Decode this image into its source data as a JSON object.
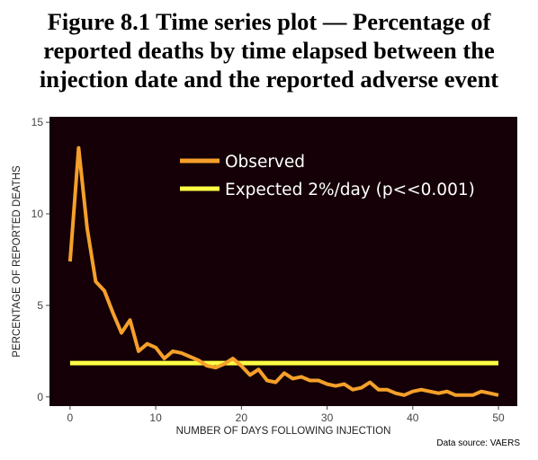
{
  "figure": {
    "title_lines": [
      "Figure 8.1  Time series plot — Percentage of",
      "reported deaths by time elapsed between the",
      "injection date and the reported adverse event"
    ],
    "source": "Data source: VAERS"
  },
  "chart_data": {
    "type": "line",
    "title": "Figure 8.1  Time series plot — Percentage of reported deaths by time elapsed between the injection date and the reported adverse event",
    "xlabel": "NUMBER OF DAYS FOLLOWING INJECTION",
    "ylabel": "PERCENTAGE OF REPORTED DEATHS",
    "xlim": [
      -2.4,
      52.2
    ],
    "ylim": [
      -0.5,
      15.3
    ],
    "xticks": [
      0,
      10,
      20,
      30,
      40,
      50
    ],
    "yticks": [
      0,
      5,
      10,
      15
    ],
    "background": "#140006",
    "grid": false,
    "legend_position": "top-center",
    "x": [
      0,
      1,
      2,
      3,
      4,
      5,
      6,
      7,
      8,
      9,
      10,
      11,
      12,
      13,
      14,
      15,
      16,
      17,
      18,
      19,
      20,
      21,
      22,
      23,
      24,
      25,
      26,
      27,
      28,
      29,
      30,
      31,
      32,
      33,
      34,
      35,
      36,
      37,
      38,
      39,
      40,
      41,
      42,
      43,
      44,
      45,
      46,
      47,
      48,
      49,
      50
    ],
    "series": [
      {
        "name": "Observed",
        "color": "#f5a02a",
        "values": [
          7.4,
          13.6,
          9.2,
          6.3,
          5.8,
          4.6,
          3.5,
          4.2,
          2.5,
          2.9,
          2.7,
          2.1,
          2.5,
          2.4,
          2.2,
          2.0,
          1.7,
          1.6,
          1.8,
          2.1,
          1.7,
          1.2,
          1.5,
          0.9,
          0.8,
          1.3,
          1.0,
          1.1,
          0.9,
          0.9,
          0.7,
          0.6,
          0.7,
          0.4,
          0.5,
          0.8,
          0.4,
          0.4,
          0.2,
          0.1,
          0.3,
          0.4,
          0.3,
          0.2,
          0.3,
          0.1,
          0.1,
          0.1,
          0.3,
          0.2,
          0.1
        ]
      },
      {
        "name": "Expected 2%/day (p<<0.001)",
        "color": "#ffff44",
        "values": [
          1.85,
          1.85,
          1.85,
          1.85,
          1.85,
          1.85,
          1.85,
          1.85,
          1.85,
          1.85,
          1.85,
          1.85,
          1.85,
          1.85,
          1.85,
          1.85,
          1.85,
          1.85,
          1.85,
          1.85,
          1.85,
          1.85,
          1.85,
          1.85,
          1.85,
          1.85,
          1.85,
          1.85,
          1.85,
          1.85,
          1.85,
          1.85,
          1.85,
          1.85,
          1.85,
          1.85,
          1.85,
          1.85,
          1.85,
          1.85,
          1.85,
          1.85,
          1.85,
          1.85,
          1.85,
          1.85,
          1.85,
          1.85,
          1.85,
          1.85,
          1.85
        ]
      }
    ]
  }
}
